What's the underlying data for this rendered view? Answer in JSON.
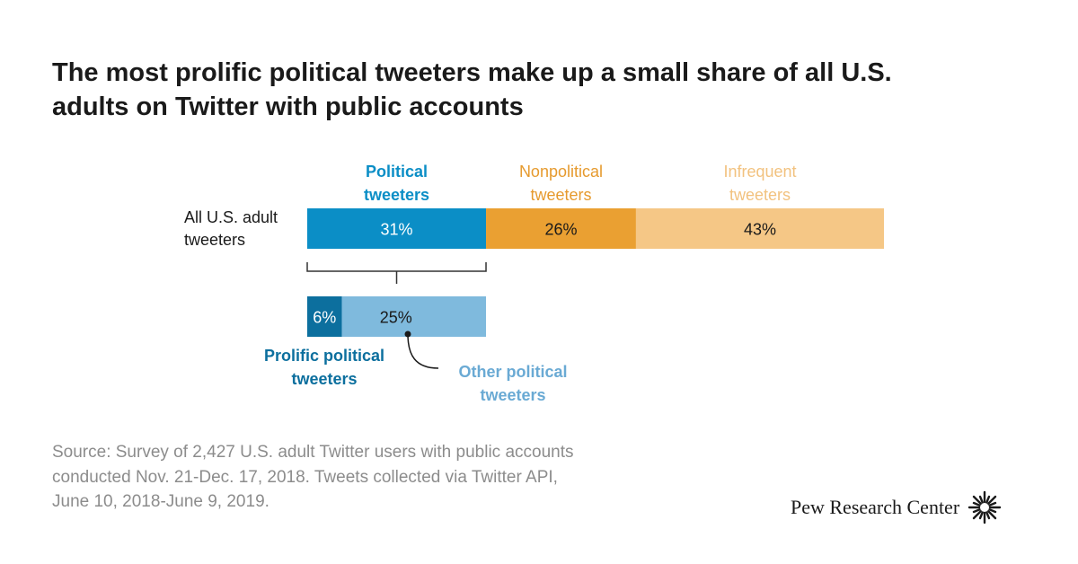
{
  "title": "The most prolific political tweeters make up a small share of all U.S.\nadults on Twitter with public accounts",
  "source": "Source: Survey of 2,427 U.S. adult Twitter users with public accounts\nconducted Nov. 21-Dec. 17, 2018. Tweets collected via Twitter API,\nJune 10, 2018-June 9, 2019.",
  "brand": {
    "name": "Pew Research Center",
    "logo_icon": "sunburst-icon"
  },
  "colors": {
    "political": "#0b8ec6",
    "nonpolitical": "#eaa032",
    "infrequent": "#f5c786",
    "prolific": "#0c6f9e",
    "other_political": "#7fbadd",
    "prolific_label": "#0c6f9e",
    "other_label": "#6aaad4",
    "political_label": "#0b8ec6",
    "nonpolitical_label": "#e69a2e",
    "infrequent_label": "#f2c27f"
  },
  "chart_data": [
    {
      "type": "bar",
      "stacked": true,
      "orientation": "horizontal",
      "categories": [
        "All U.S. adult\ntweeters"
      ],
      "series": [
        {
          "name": "Political\ntweeters",
          "key": "political",
          "values": [
            31
          ],
          "label": "31%"
        },
        {
          "name": "Nonpolitical\ntweeters",
          "key": "nonpolitical",
          "values": [
            26
          ],
          "label": "26%"
        },
        {
          "name": "Infrequent\ntweeters",
          "key": "infrequent",
          "values": [
            43
          ],
          "label": "43%"
        }
      ]
    },
    {
      "type": "bar",
      "stacked": true,
      "orientation": "horizontal",
      "breakdown_of": "Political\ntweeters",
      "series": [
        {
          "name": "Prolific political\ntweeters",
          "key": "prolific",
          "values": [
            6
          ],
          "label": "6%"
        },
        {
          "name": "Other political\ntweeters",
          "key": "other_political",
          "values": [
            25
          ],
          "label": "25%"
        }
      ]
    }
  ]
}
